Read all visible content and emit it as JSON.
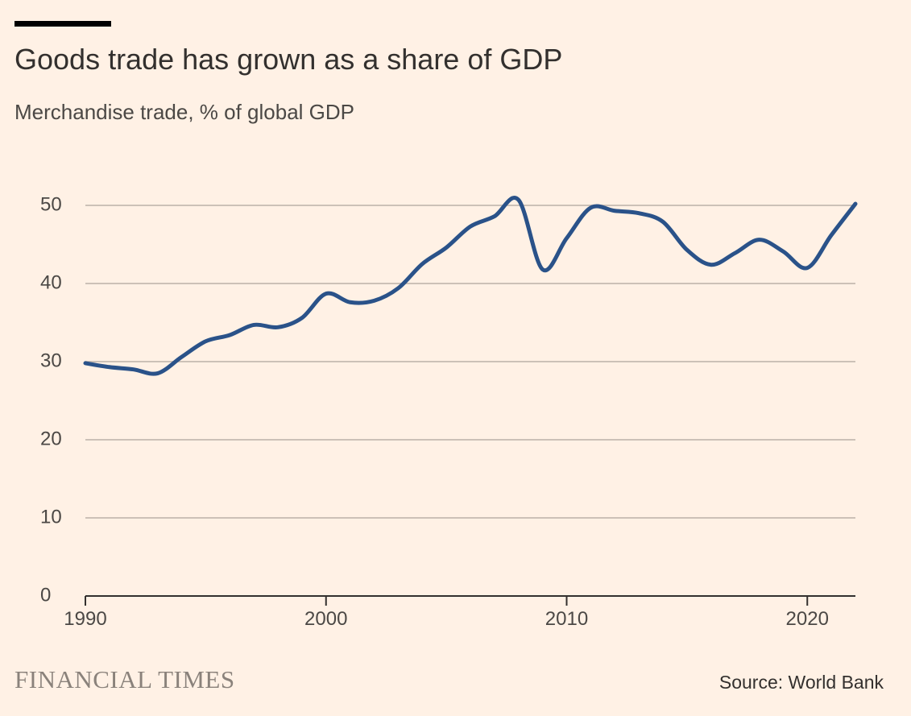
{
  "header": {
    "title": "Goods trade has grown as a share of GDP",
    "subtitle": "Merchandise trade, % of global GDP"
  },
  "footer": {
    "logo_text": "FINANCIAL TIMES",
    "source": "Source: World Bank"
  },
  "colors": {
    "background": "#fff1e5",
    "line": "#2a5289",
    "gridline": "#ccc1b7",
    "axis": "#33302e",
    "text": "#33302e"
  },
  "chart_data": {
    "type": "line",
    "title": "Goods trade has grown as a share of GDP",
    "subtitle": "Merchandise trade, % of global GDP",
    "xlabel": "",
    "ylabel": "",
    "xlim": [
      1990,
      2022
    ],
    "ylim": [
      0,
      50
    ],
    "x_ticks": [
      1990,
      2000,
      2010,
      2020
    ],
    "y_ticks": [
      0,
      10,
      20,
      30,
      40,
      50
    ],
    "grid": true,
    "legend": "none",
    "series": [
      {
        "name": "Merchandise trade, % of global GDP",
        "x": [
          1990,
          1991,
          1992,
          1993,
          1994,
          1995,
          1996,
          1997,
          1998,
          1999,
          2000,
          2001,
          2002,
          2003,
          2004,
          2005,
          2006,
          2007,
          2008,
          2009,
          2010,
          2011,
          2012,
          2013,
          2014,
          2015,
          2016,
          2017,
          2018,
          2019,
          2020,
          2021,
          2022
        ],
        "values": [
          29.8,
          29.3,
          29.0,
          28.5,
          30.6,
          32.6,
          33.4,
          34.7,
          34.4,
          35.6,
          38.7,
          37.6,
          37.8,
          39.4,
          42.5,
          44.6,
          47.3,
          48.6,
          50.7,
          41.8,
          45.8,
          49.7,
          49.3,
          49.0,
          47.9,
          44.3,
          42.4,
          43.9,
          45.6,
          44.1,
          42.0,
          46.2,
          50.2
        ]
      }
    ]
  }
}
